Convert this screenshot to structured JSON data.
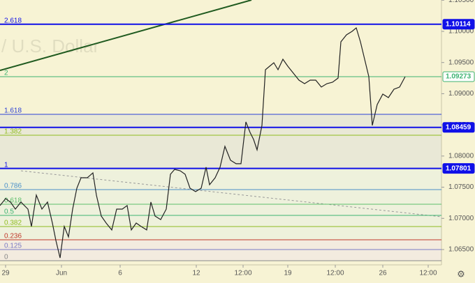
{
  "chart_data": {
    "type": "line",
    "watermark": "/ U.S. Dollar",
    "xlim": [
      0,
      632
    ],
    "ylim": [
      1.06254,
      1.10503
    ],
    "xticks": [
      {
        "value": 8,
        "label": "29"
      },
      {
        "value": 88,
        "label": "Jun"
      },
      {
        "value": 172,
        "label": "6"
      },
      {
        "value": 281,
        "label": "12"
      },
      {
        "value": 348,
        "label": "12:00"
      },
      {
        "value": 412,
        "label": "19"
      },
      {
        "value": 480,
        "label": "12:00"
      },
      {
        "value": 548,
        "label": "26"
      },
      {
        "value": 613,
        "label": "12:00"
      }
    ],
    "yticks": [
      {
        "value": 1.065,
        "label": "1.06500"
      },
      {
        "value": 1.07,
        "label": "1.07000"
      },
      {
        "value": 1.075,
        "label": "1.07500"
      },
      {
        "value": 1.08,
        "label": "1.08000"
      },
      {
        "value": 1.085,
        "label": "1.08500"
      },
      {
        "value": 1.09,
        "label": "1.09000"
      },
      {
        "value": 1.095,
        "label": "1.09500"
      },
      {
        "value": 1.1,
        "label": "1.10000"
      },
      {
        "value": 1.105,
        "label": "1.10500"
      }
    ],
    "levels": [
      {
        "label": "2.618",
        "value": 1.10114,
        "color": "#1010e8",
        "tagged": true
      },
      {
        "label": "2",
        "value": 1.09273,
        "color": "#3cb371",
        "tagged": true
      },
      {
        "label": "1.618",
        "value": 1.08669,
        "color": "#2b3fd6",
        "tagged": false
      },
      {
        "value": 1.08459,
        "color": "#1010e8",
        "tagged": true
      },
      {
        "label": "1.382",
        "value": 1.08334,
        "color": "#8fbc1f",
        "tagged": false
      },
      {
        "label": "1",
        "value": 1.07801,
        "color": "#1010e8",
        "tagged": true
      },
      {
        "label": "0.786",
        "value": 1.07462,
        "color": "#4a90c8",
        "tagged": false
      },
      {
        "label": "0.618",
        "value": 1.07227,
        "color": "#5cbf6a",
        "tagged": false
      },
      {
        "label": "0.5",
        "value": 1.07048,
        "color": "#3cb371",
        "tagged": false
      },
      {
        "label": "0.382",
        "value": 1.06869,
        "color": "#8fbc1f",
        "tagged": false
      },
      {
        "label": "0.236",
        "value": 1.06657,
        "color": "#c0392b",
        "tagged": false
      },
      {
        "label": "0.125",
        "value": 1.065,
        "color": "#7b7bc4",
        "tagged": false
      },
      {
        "label": "0",
        "value": 1.06321,
        "color": "#888888",
        "tagged": false
      }
    ],
    "series": [
      {
        "color": "#222222",
        "x": [
          0,
          8,
          15,
          22,
          30,
          40,
          45,
          52,
          60,
          68,
          75,
          80,
          86,
          92,
          98,
          104,
          110,
          116,
          125,
          133,
          138,
          145,
          152,
          160,
          167,
          175,
          182,
          188,
          195,
          202,
          210,
          216,
          222,
          230,
          238,
          244,
          250,
          258,
          265,
          272,
          280,
          288,
          295,
          300,
          308,
          315,
          322,
          330,
          338,
          345,
          352,
          358,
          363,
          368,
          375,
          380,
          386,
          392,
          398,
          405,
          412,
          420,
          428,
          436,
          444,
          452,
          460,
          468,
          476,
          484,
          488,
          496,
          504,
          510,
          516,
          522,
          528,
          533,
          540,
          548,
          556,
          564,
          572,
          580
        ],
        "values": [
          1.07205,
          1.07317,
          1.07261,
          1.07149,
          1.07261,
          1.07149,
          1.0687,
          1.07373,
          1.07149,
          1.07261,
          1.06925,
          1.06646,
          1.06366,
          1.0687,
          1.06702,
          1.07149,
          1.07484,
          1.07652,
          1.07652,
          1.0773,
          1.07373,
          1.07037,
          1.06925,
          1.06814,
          1.07149,
          1.07149,
          1.07205,
          1.06814,
          1.06925,
          1.0687,
          1.06814,
          1.07261,
          1.07037,
          1.06981,
          1.07149,
          1.07708,
          1.07786,
          1.07764,
          1.07708,
          1.07484,
          1.07429,
          1.07484,
          1.0782,
          1.0754,
          1.07652,
          1.0782,
          1.08155,
          1.07932,
          1.07876,
          1.07876,
          1.08547,
          1.08379,
          1.08267,
          1.08099,
          1.08491,
          1.09385,
          1.09441,
          1.09497,
          1.09385,
          1.09553,
          1.09441,
          1.09329,
          1.09217,
          1.09161,
          1.09217,
          1.09217,
          1.09106,
          1.09161,
          1.09184,
          1.09251,
          1.09832,
          1.09944,
          1.1,
          1.10056,
          1.09832,
          1.09553,
          1.09273,
          1.08491,
          1.08826,
          1.08994,
          1.08938,
          1.09072,
          1.09106,
          1.09273
        ]
      }
    ]
  }
}
